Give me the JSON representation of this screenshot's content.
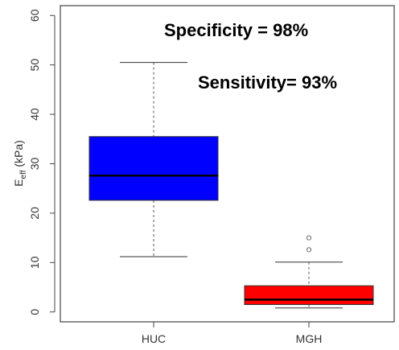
{
  "chart_data": {
    "type": "box",
    "ylabel_main": "E",
    "ylabel_sub": "eff",
    "ylabel_unit": " (kPa)",
    "ylim": [
      -2,
      62
    ],
    "yticks": [
      0,
      10,
      20,
      30,
      40,
      50,
      60
    ],
    "categories": [
      "HUC",
      "MGH"
    ],
    "boxes": [
      {
        "name": "HUC",
        "color": "#0000ff",
        "whisker_low": 11.2,
        "q1": 22.6,
        "median": 27.6,
        "q3": 35.5,
        "whisker_high": 50.5,
        "outliers": []
      },
      {
        "name": "MGH",
        "color": "#ff0000",
        "whisker_low": 0.8,
        "q1": 1.5,
        "median": 2.5,
        "q3": 5.3,
        "whisker_high": 10.1,
        "outliers": [
          12.6,
          15.0
        ]
      }
    ],
    "annotations": [
      "Specificity = 98%",
      "Sensitivity= 93%"
    ]
  }
}
